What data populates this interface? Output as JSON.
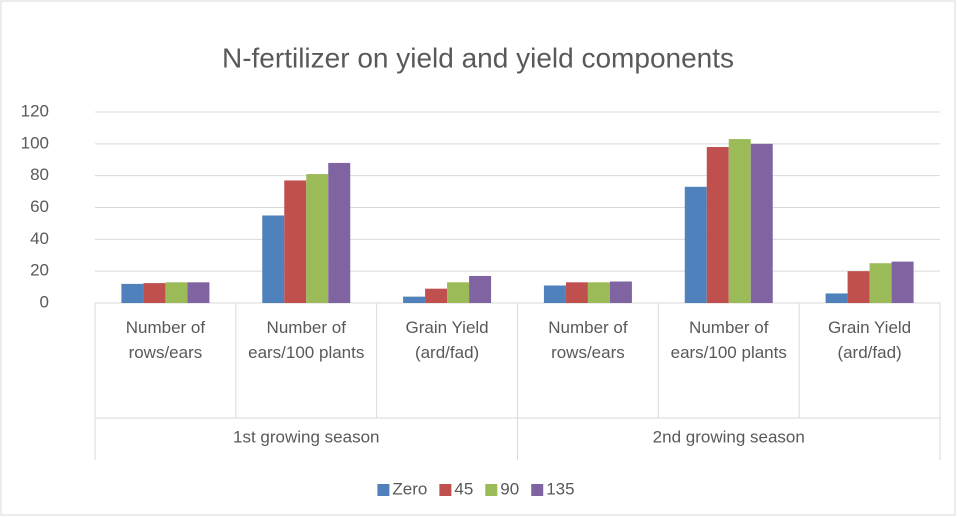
{
  "chart_data": {
    "type": "bar",
    "title": "N-fertilizer on yield and yield components",
    "categories": [
      "Number of rows/ears",
      "Number of ears/100 plants",
      "Grain Yield (ard/fad)",
      "Number of rows/ears",
      "Number of ears/100 plants",
      "Grain Yield (ard/fad)"
    ],
    "category_groups": [
      "1st growing season",
      "2nd growing season"
    ],
    "series": [
      {
        "name": "Zero",
        "color": "#4f81bd",
        "values": [
          12,
          55,
          4,
          11,
          73,
          6
        ]
      },
      {
        "name": "45",
        "color": "#c0504d",
        "values": [
          12.5,
          77,
          9,
          13,
          98,
          20
        ]
      },
      {
        "name": "90",
        "color": "#9bbb59",
        "values": [
          13,
          81,
          13,
          13,
          103,
          25
        ]
      },
      {
        "name": "135",
        "color": "#8064a2",
        "values": [
          13,
          88,
          17,
          13.5,
          100,
          26
        ]
      }
    ],
    "ylim": [
      0,
      120
    ],
    "yticks": [
      0,
      20,
      40,
      60,
      80,
      100,
      120
    ],
    "grid": true,
    "legend": "bottom"
  }
}
